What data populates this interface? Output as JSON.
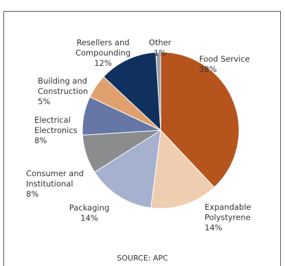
{
  "chart_data": {
    "type": "pie",
    "categories": [
      "Food Service",
      "Expandable Polystyrene",
      "Packaging",
      "Consumer and Institutional",
      "Electrical Electronics",
      "Building and Construction",
      "Resellers and Compounding",
      "Other"
    ],
    "values": [
      38,
      14,
      14,
      8,
      8,
      5,
      12,
      1
    ],
    "value_labels": [
      "38%",
      "14%",
      "14%",
      "8%",
      "8%",
      "5%",
      "12%",
      "1%"
    ],
    "colors": [
      "#b5541c",
      "#efcdb0",
      "#a6b0cf",
      "#8a8c8e",
      "#6677a6",
      "#e0a06e",
      "#10305e",
      "#9aa0a8"
    ],
    "source": "SOURCE: APC"
  }
}
